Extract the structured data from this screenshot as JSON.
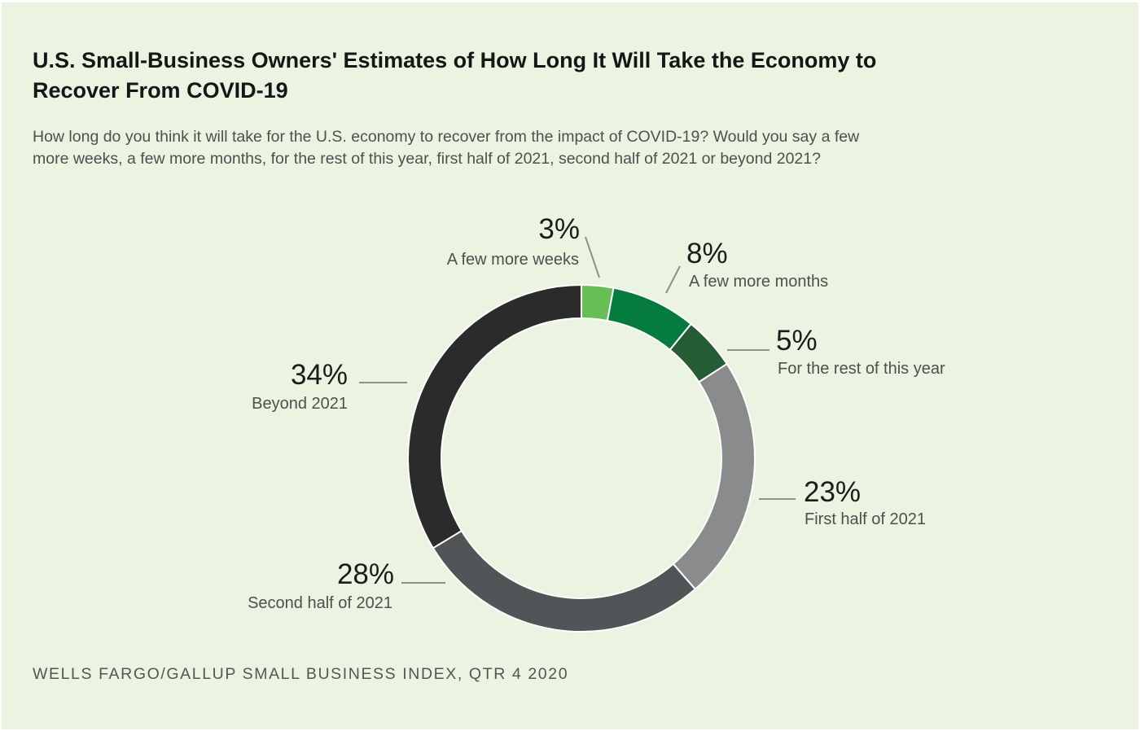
{
  "chart_data": {
    "type": "pie",
    "title": "U.S. Small-Business Owners' Estimates of How Long It Will Take the Economy to Recover From COVID-19",
    "subtitle": "How long do you think it will take for the U.S. economy to recover from the impact of COVID-19? Would you say a few more weeks, a few more months, for the rest of this year, first half of 2021, second half of 2021 or beyond 2021?",
    "source": "WELLS FARGO/GALLUP SMALL BUSINESS INDEX, QTR 4 2020",
    "donut": true,
    "slices": [
      {
        "label": "A few more weeks",
        "value": 3,
        "display": "3%",
        "color": "#65bf55"
      },
      {
        "label": "A few more months",
        "value": 8,
        "display": "8%",
        "color": "#067b3e"
      },
      {
        "label": "For the rest of this year",
        "value": 5,
        "display": "5%",
        "color": "#245d34"
      },
      {
        "label": "First half of 2021",
        "value": 23,
        "display": "23%",
        "color": "#898b8c"
      },
      {
        "label": "Second half of 2021",
        "value": 28,
        "display": "28%",
        "color": "#525558"
      },
      {
        "label": "Beyond 2021",
        "value": 34,
        "display": "34%",
        "color": "#2b2b2c"
      }
    ]
  }
}
